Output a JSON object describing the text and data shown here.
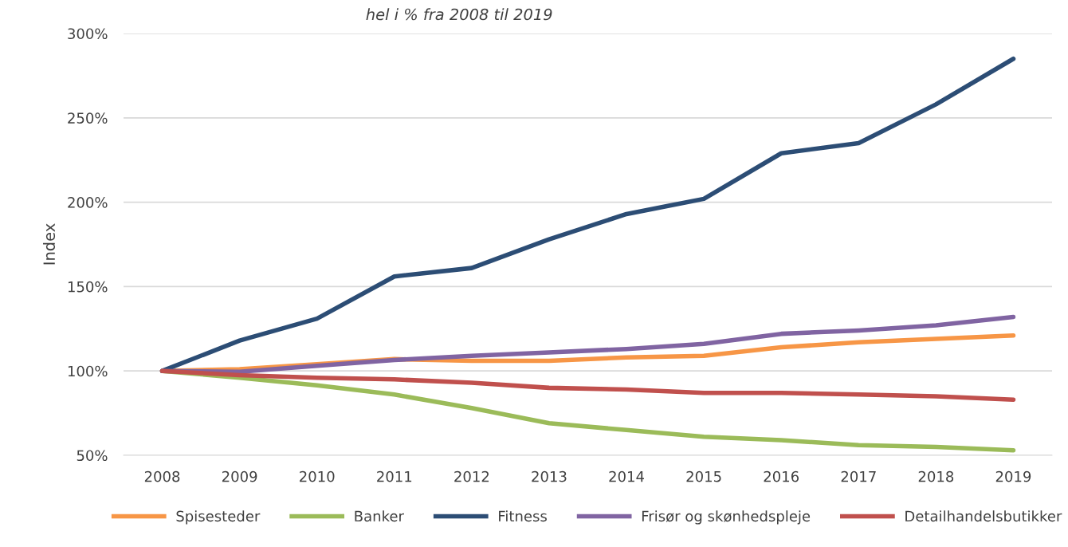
{
  "chart_data": {
    "type": "line",
    "title": "hel i % fra 2008 til 2019",
    "ylabel": "Index",
    "categories": [
      "2008",
      "2009",
      "2010",
      "2011",
      "2012",
      "2013",
      "2014",
      "2015",
      "2016",
      "2017",
      "2018",
      "2019"
    ],
    "series": [
      {
        "name": "Spisesteder",
        "color": "#f79646",
        "values": [
          100,
          101,
          104,
          107,
          106,
          106,
          108,
          109,
          114,
          117,
          119,
          121
        ]
      },
      {
        "name": "Banker",
        "color": "#9bbb59",
        "values": [
          100,
          96,
          91.5,
          86,
          78,
          69,
          65,
          61,
          59,
          56,
          55,
          53
        ]
      },
      {
        "name": "Fitness",
        "color": "#2c4d75",
        "values": [
          100,
          118,
          131,
          156,
          161,
          178,
          193,
          202,
          229,
          235,
          258,
          285
        ]
      },
      {
        "name": "Frisør og skønhedspleje",
        "color": "#8064a2",
        "values": [
          100,
          99.5,
          103,
          106.5,
          109,
          111,
          113,
          116,
          122,
          124,
          127,
          132
        ]
      },
      {
        "name": "Detailhandelsbutikker",
        "color": "#c0504d",
        "values": [
          100,
          97.5,
          96,
          95,
          93,
          90,
          89,
          87,
          87,
          86,
          85,
          83
        ]
      }
    ],
    "ylim": [
      50,
      300
    ],
    "yticks": [
      {
        "value": 50,
        "label": "50%"
      },
      {
        "value": 100,
        "label": "100%"
      },
      {
        "value": 150,
        "label": "150%"
      },
      {
        "value": 200,
        "label": "200%"
      },
      {
        "value": 250,
        "label": "250%"
      },
      {
        "value": 300,
        "label": "300%"
      }
    ],
    "grid": "y",
    "legend": "bottom",
    "marker": "none",
    "line_style": "solid"
  }
}
